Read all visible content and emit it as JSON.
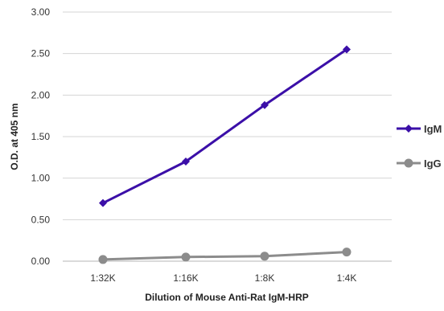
{
  "chart_data": {
    "type": "line",
    "title": "",
    "xlabel": "Dilution of Mouse Anti-Rat IgM-HRP",
    "ylabel": "O.D. at 405 nm",
    "categories": [
      "1:32K",
      "1:16K",
      "1:8K",
      "1:4K"
    ],
    "ylim": [
      0,
      3
    ],
    "yticks": [
      "0.00",
      "0.50",
      "1.00",
      "1.50",
      "2.00",
      "2.50",
      "3.00"
    ],
    "grid": true,
    "legend_position": "right",
    "series": [
      {
        "name": "IgM",
        "values": [
          0.7,
          1.2,
          1.88,
          2.55
        ],
        "color": "#3b0fa8",
        "marker": "diamond"
      },
      {
        "name": "IgG",
        "values": [
          0.02,
          0.05,
          0.06,
          0.11
        ],
        "color": "#8c8c8c",
        "marker": "circle"
      }
    ]
  }
}
